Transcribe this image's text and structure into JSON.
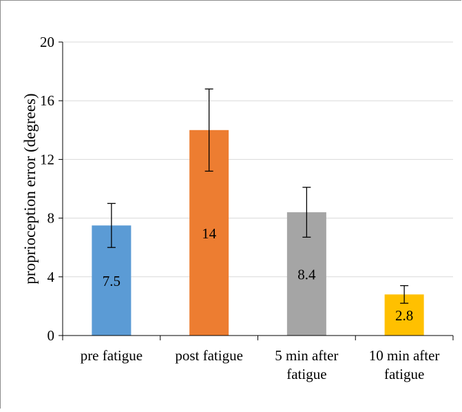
{
  "chart_data": {
    "type": "bar",
    "title": "",
    "xlabel": "",
    "ylabel": "proprioception error (degrees)",
    "ylim": [
      0,
      20
    ],
    "yticks": [
      0,
      4,
      8,
      12,
      16,
      20
    ],
    "grid": true,
    "legend": "none",
    "categories": [
      [
        "pre fatigue"
      ],
      [
        "post fatigue"
      ],
      [
        "5 min after",
        "fatigue"
      ],
      [
        "10 min after",
        "fatigue"
      ]
    ],
    "values": [
      7.5,
      14,
      8.4,
      2.8
    ],
    "data_labels": [
      "7.5",
      "14",
      "8.4",
      "2.8"
    ],
    "error_low": [
      6.0,
      11.2,
      6.7,
      2.2
    ],
    "error_high": [
      9.0,
      16.8,
      10.1,
      3.4
    ],
    "colors": [
      "#5b9bd5",
      "#ed7d31",
      "#a5a5a5",
      "#ffc000"
    ]
  }
}
